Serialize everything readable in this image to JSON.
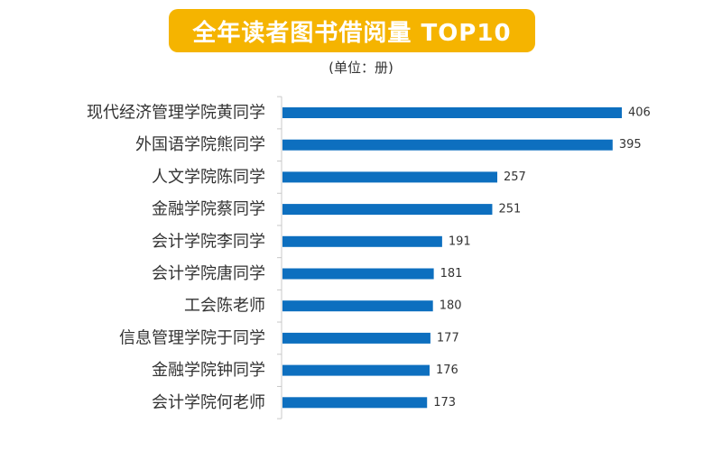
{
  "title": "全年读者图书借阅量 TOP10",
  "unit_note": "(单位：册)",
  "colors": {
    "bar": "#0d6fbf",
    "title_bg": "#f5b400",
    "axis": "#c8c8c8"
  },
  "chart_data": {
    "type": "bar",
    "orientation": "horizontal",
    "title": "全年读者图书借阅量 TOP10",
    "unit": "(单位：册)",
    "categories": [
      "现代经济管理学院黄同学",
      "外国语学院熊同学",
      "人文学院陈同学",
      "金融学院蔡同学",
      "会计学院李同学",
      "会计学院唐同学",
      "工会陈老师",
      "信息管理学院于同学",
      "金融学院钟同学",
      "会计学院何老师"
    ],
    "values": [
      406,
      395,
      257,
      251,
      191,
      181,
      180,
      177,
      176,
      173
    ],
    "data_labels": [
      "406",
      "395",
      "257",
      "251",
      "191",
      "181",
      "180",
      "177",
      "176",
      "173"
    ],
    "xlim": [
      0,
      406
    ],
    "grid": false,
    "legend": "none"
  }
}
